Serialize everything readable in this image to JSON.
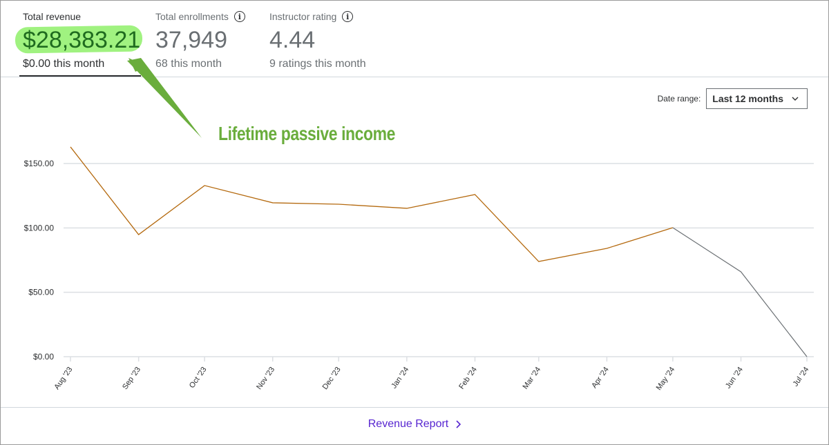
{
  "stats": [
    {
      "label": "Total revenue",
      "value": "$28,383.21",
      "sub": "$0.00 this month"
    },
    {
      "label": "Total enrollments",
      "value": "37,949",
      "sub": "68 this month"
    },
    {
      "label": "Instructor rating",
      "value": "4.44",
      "sub": "9 ratings this month"
    }
  ],
  "date_range": {
    "label": "Date range:",
    "selected": "Last 12 months"
  },
  "annotation": "Lifetime passive income",
  "footer": {
    "link": "Revenue Report"
  },
  "colors": {
    "line": "#b4690e",
    "projection": "#6a6f73",
    "annotation": "#6aad3c",
    "link": "#5624d0"
  },
  "chart_data": {
    "type": "line",
    "title": "",
    "xlabel": "",
    "ylabel": "",
    "categories": [
      "Aug '23",
      "Sep '23",
      "Oct '23",
      "Nov '23",
      "Dec '23",
      "Jan '24",
      "Feb '24",
      "Mar '24",
      "Apr '24",
      "May '24",
      "Jun '24",
      "Jul '24"
    ],
    "month_days_offset": [
      0,
      31,
      61,
      92,
      122,
      153,
      184,
      213,
      244,
      274,
      305,
      335
    ],
    "values": [
      162.9,
      94.8,
      132.9,
      119.5,
      118.4,
      115.2,
      125.9,
      73.9,
      84.1,
      100.2,
      65.9,
      0
    ],
    "solid_until_index": 9,
    "yticks": [
      "$0.00",
      "$50.00",
      "$100.00",
      "$150.00"
    ],
    "ytick_values": [
      0,
      50,
      100,
      150
    ],
    "ylim": [
      0,
      150
    ],
    "grid": true
  }
}
